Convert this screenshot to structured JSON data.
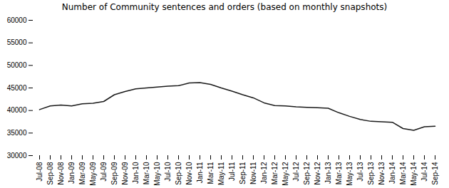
{
  "chart_data": {
    "type": "line",
    "title": "Number of Community sentences and orders (based on monthly snapshots)",
    "categories": [
      "Jul-08",
      "Sep-08",
      "Nov-08",
      "Jan-09",
      "Mar-09",
      "May-09",
      "Jul-09",
      "Sep-09",
      "Nov-09",
      "Jan-10",
      "Mar-10",
      "May-10",
      "Jul-10",
      "Sep-10",
      "Nov-10",
      "Jan-11",
      "Mar-11",
      "May-11",
      "Jul-11",
      "Sep-11",
      "Nov-11",
      "Jan-12",
      "Mar-12",
      "May-12",
      "Jul-12",
      "Sep-12",
      "Nov-12",
      "Jan-13",
      "Mar-13",
      "May-13",
      "Jul-13",
      "Sep-13",
      "Nov-13",
      "Jan-14",
      "Mar-14",
      "May-14",
      "Jul-14",
      "Sep-14"
    ],
    "values": [
      40200,
      41000,
      41200,
      41000,
      41500,
      41600,
      42000,
      43500,
      44200,
      44800,
      45000,
      45200,
      45400,
      45500,
      46100,
      46200,
      45800,
      45000,
      44300,
      43500,
      42800,
      41700,
      41100,
      41000,
      40800,
      40700,
      40600,
      40500,
      39500,
      38700,
      38000,
      37600,
      37500,
      37400,
      36000,
      35600,
      36400,
      36500
    ],
    "color": "#1a1a1a",
    "ylim": [
      30000,
      60000
    ],
    "yticks": [
      30000,
      35000,
      40000,
      45000,
      50000,
      55000,
      60000
    ],
    "grid": false
  }
}
